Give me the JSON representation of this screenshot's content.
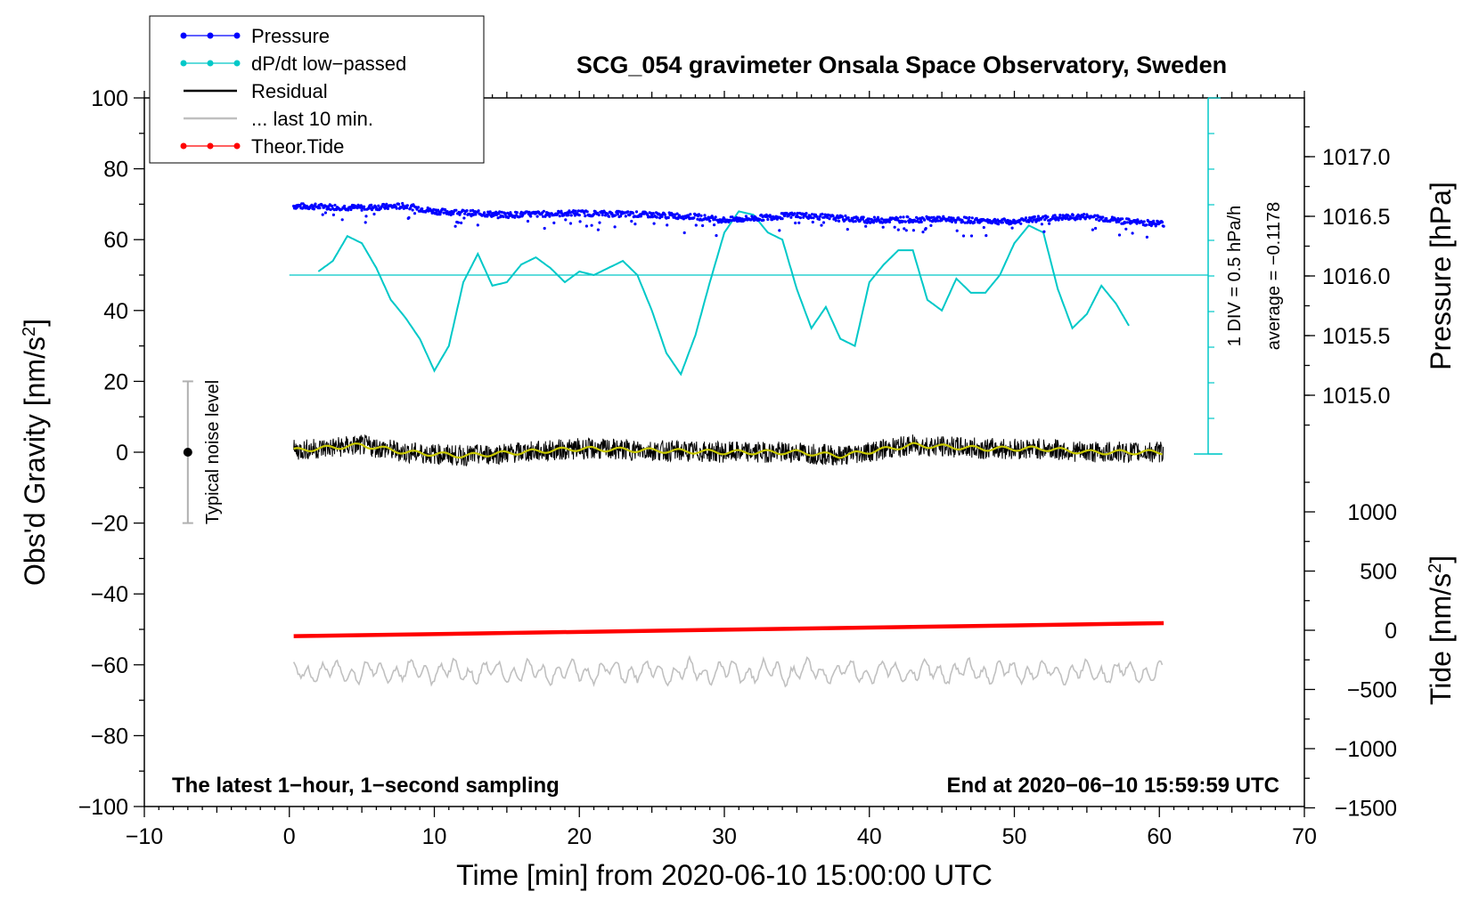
{
  "chart_data": {
    "type": "line",
    "title": "SCG_054 gravimeter Onsala Space Observatory, Sweden",
    "xlabel": "Time [min] from 2020-06-10 15:00:00 UTC",
    "ylabel": "Obs'd Gravity [nm/s",
    "ylabel_sup": "2",
    "ylabel_tail": "]",
    "y2label": "Pressure [hPa]",
    "y3label": "Tide [nm/s",
    "y3label_sup": "2",
    "y3label_tail": "]",
    "xlim": [
      -10,
      70
    ],
    "ylim": [
      -100,
      100
    ],
    "x_ticks": [
      "−10",
      "0",
      "10",
      "20",
      "30",
      "40",
      "50",
      "60",
      "70"
    ],
    "y_ticks": [
      "100",
      "80",
      "60",
      "40",
      "20",
      "0",
      "−20",
      "−40",
      "−60",
      "−80",
      "−100"
    ],
    "pressure_axis": {
      "ticks": [
        "1017.0",
        "1016.5",
        "1016.0",
        "1015.5",
        "1015.0"
      ],
      "values": [
        1017.0,
        1016.5,
        1016.0,
        1015.5,
        1015.0
      ]
    },
    "tide_axis": {
      "ticks": [
        "1000",
        "500",
        "0",
        "−500",
        "−1000",
        "−1500"
      ],
      "values": [
        1000,
        500,
        0,
        -500,
        -1000,
        -1500
      ]
    },
    "legend": [
      {
        "label": "Pressure",
        "color": "#0000ff"
      },
      {
        "label": "dP/dt low−passed",
        "color": "#00c8c8"
      },
      {
        "label": "Residual",
        "color": "#000000"
      },
      {
        "label": "... last 10 min.",
        "color": "#c0c0c0"
      },
      {
        "label": "Theor.Tide",
        "color": "#ff0000"
      }
    ],
    "notes": {
      "left": "The latest 1−hour, 1−second sampling",
      "right": "End at 2020−06−10 15:59:59 UTC"
    },
    "dpdt_scale": {
      "line1": "1 DIV = 0.5 hPa/h",
      "line2": "average = −0.1178"
    },
    "noise_label": "Typical noise level",
    "noise_level": {
      "x": -7,
      "y": 0,
      "ymin": -20,
      "ymax": 20
    },
    "series": [
      {
        "name": "Pressure",
        "color": "#0000ff",
        "x": [
          0.3,
          5,
          8,
          10,
          15,
          20,
          25,
          28,
          30,
          32,
          35,
          38,
          40,
          45,
          50,
          52,
          55,
          58,
          60.3
        ],
        "values": [
          69.5,
          69,
          69.5,
          68,
          67,
          67.5,
          67,
          66.5,
          65.5,
          66,
          67,
          66,
          65.5,
          65.8,
          65,
          66,
          66.5,
          65,
          64.5
        ]
      },
      {
        "name": "dP/dt low−passed",
        "color": "#00c8c8",
        "baseline": 50,
        "x": [
          2,
          3,
          4,
          5,
          6,
          7,
          8,
          9,
          10,
          11,
          12,
          13,
          14,
          15,
          16,
          17,
          18,
          19,
          20,
          21,
          22,
          23,
          24,
          25,
          26,
          27,
          28,
          29,
          30,
          31,
          32,
          33,
          34,
          35,
          36,
          37,
          38,
          39,
          40,
          41,
          42,
          43,
          44,
          45,
          46,
          47,
          48,
          49,
          50,
          51,
          52,
          53,
          54,
          55,
          56,
          57,
          58
        ],
        "values": [
          51,
          54,
          61,
          59,
          52,
          43,
          38,
          32,
          23,
          30,
          48,
          56,
          47,
          48,
          53,
          55,
          52,
          48,
          51,
          50,
          52,
          54,
          50,
          40,
          28,
          22,
          33,
          48,
          62,
          68,
          67,
          62,
          60,
          46,
          35,
          41,
          32,
          30,
          48,
          53,
          57,
          57,
          43,
          40,
          49,
          45,
          45,
          50,
          59,
          64,
          62,
          46,
          35,
          39,
          47,
          42,
          35
        ]
      },
      {
        "name": "Residual",
        "color": "#000000",
        "x": [
          0.3,
          60.3
        ],
        "values": [
          0,
          0
        ],
        "amplitude": 3
      },
      {
        "name": "Residual smoothed",
        "color": "#c8c800",
        "x": [
          0.3,
          5,
          8,
          12,
          16,
          20,
          25,
          30,
          35,
          38,
          43,
          48,
          52,
          55,
          60.3
        ],
        "values": [
          0.5,
          2,
          0,
          -1,
          0,
          1,
          0.5,
          0,
          0,
          -1,
          2,
          1,
          1,
          0,
          0
        ]
      },
      {
        "name": "... last 10 min.",
        "color": "#c0c0c0",
        "x": [
          0.3,
          60.3
        ],
        "values": [
          -62,
          -62
        ],
        "amplitude": 3.5
      },
      {
        "name": "Theor.Tide",
        "color": "#ff0000",
        "axis": "tide",
        "x": [
          0.3,
          60.3
        ],
        "values": [
          -50,
          60
        ]
      }
    ]
  }
}
